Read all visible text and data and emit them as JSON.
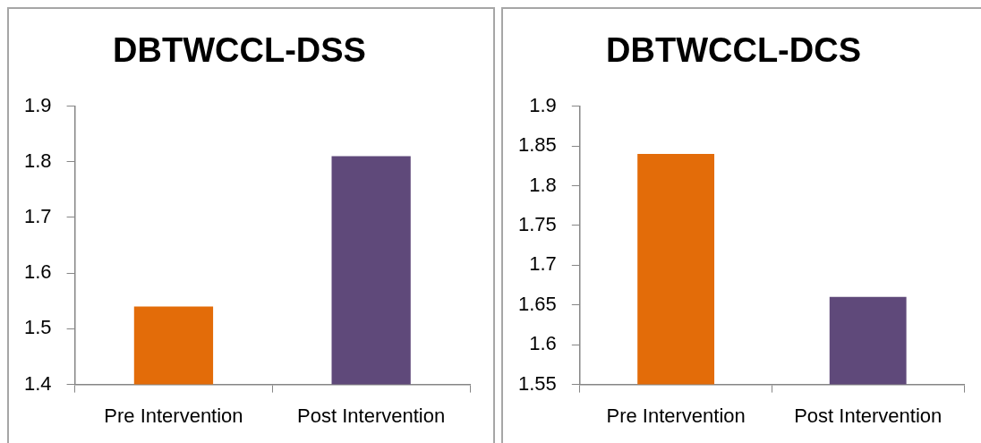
{
  "chart_data": [
    {
      "type": "bar",
      "title": "DBTWCCL-DSS",
      "categories": [
        "Pre Intervention",
        "Post Intervention"
      ],
      "values": [
        1.54,
        1.81
      ],
      "colors": [
        "#e36c09",
        "#5f497a"
      ],
      "ylim": [
        1.4,
        1.9
      ],
      "yticks": [
        1.4,
        1.5,
        1.6,
        1.7,
        1.8,
        1.9
      ],
      "grid": false
    },
    {
      "type": "bar",
      "title": "DBTWCCL-DCS",
      "categories": [
        "Pre Intervention",
        "Post Intervention"
      ],
      "values": [
        1.84,
        1.66
      ],
      "colors": [
        "#e36c09",
        "#5f497a"
      ],
      "ylim": [
        1.55,
        1.9
      ],
      "yticks": [
        1.55,
        1.6,
        1.65,
        1.7,
        1.75,
        1.8,
        1.85,
        1.9
      ],
      "grid": false
    }
  ]
}
